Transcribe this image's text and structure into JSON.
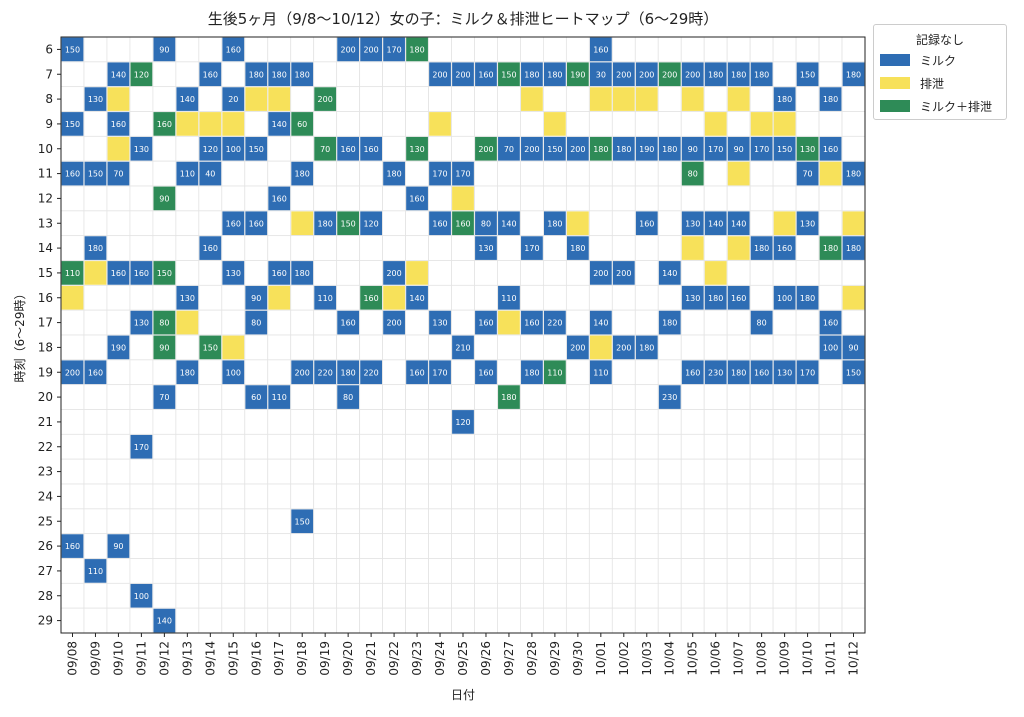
{
  "chart_data": {
    "type": "heatmap",
    "title": "生後5ヶ月（9/8〜10/12）女の子：ミルク＆排泄ヒートマップ（6〜29時）",
    "xlabel": "日付",
    "ylabel": "時刻（6〜29時）",
    "x": [
      "09/08",
      "09/09",
      "09/10",
      "09/11",
      "09/12",
      "09/13",
      "09/14",
      "09/15",
      "09/16",
      "09/17",
      "09/18",
      "09/19",
      "09/20",
      "09/21",
      "09/22",
      "09/23",
      "09/24",
      "09/25",
      "09/26",
      "09/27",
      "09/28",
      "09/29",
      "09/30",
      "10/01",
      "10/02",
      "10/03",
      "10/04",
      "10/05",
      "10/06",
      "10/07",
      "10/08",
      "10/09",
      "10/10",
      "10/11",
      "10/12"
    ],
    "y": [
      "6",
      "7",
      "8",
      "9",
      "10",
      "11",
      "12",
      "13",
      "14",
      "15",
      "16",
      "17",
      "18",
      "19",
      "20",
      "21",
      "22",
      "23",
      "24",
      "25",
      "26",
      "27",
      "28",
      "29"
    ],
    "colors": {
      "none": "#ffffff",
      "milk": "#2e6db4",
      "excretion": "#f7e15a",
      "both": "#2e8b57"
    },
    "legend": {
      "title": "記録なし",
      "position": "outside-right",
      "items": [
        {
          "label": "ミルク",
          "color": "#2e6db4"
        },
        {
          "label": "排泄",
          "color": "#f7e15a"
        },
        {
          "label": "ミルク＋排泄",
          "color": "#2e8b57"
        }
      ]
    },
    "grid": true,
    "cells": [
      [
        "09/08",
        "6",
        "milk",
        150
      ],
      [
        "09/12",
        "6",
        "milk",
        90
      ],
      [
        "09/15",
        "6",
        "milk",
        160
      ],
      [
        "09/20",
        "6",
        "milk",
        200
      ],
      [
        "09/21",
        "6",
        "milk",
        200
      ],
      [
        "09/22",
        "6",
        "milk",
        170
      ],
      [
        "09/23",
        "6",
        "both",
        180
      ],
      [
        "10/01",
        "6",
        "milk",
        160
      ],
      [
        "09/10",
        "7",
        "milk",
        140
      ],
      [
        "09/11",
        "7",
        "both",
        120
      ],
      [
        "09/14",
        "7",
        "milk",
        160
      ],
      [
        "09/16",
        "7",
        "milk",
        180
      ],
      [
        "09/17",
        "7",
        "milk",
        180
      ],
      [
        "09/18",
        "7",
        "milk",
        180
      ],
      [
        "09/24",
        "7",
        "milk",
        200
      ],
      [
        "09/25",
        "7",
        "milk",
        200
      ],
      [
        "09/26",
        "7",
        "milk",
        160
      ],
      [
        "09/27",
        "7",
        "both",
        150
      ],
      [
        "09/28",
        "7",
        "milk",
        180
      ],
      [
        "09/29",
        "7",
        "milk",
        180
      ],
      [
        "09/30",
        "7",
        "both",
        190
      ],
      [
        "10/01",
        "7",
        "milk",
        30
      ],
      [
        "10/02",
        "7",
        "milk",
        200
      ],
      [
        "10/03",
        "7",
        "milk",
        200
      ],
      [
        "10/04",
        "7",
        "both",
        200
      ],
      [
        "10/05",
        "7",
        "milk",
        200
      ],
      [
        "10/06",
        "7",
        "milk",
        180
      ],
      [
        "10/07",
        "7",
        "milk",
        180
      ],
      [
        "10/08",
        "7",
        "milk",
        180
      ],
      [
        "10/10",
        "7",
        "milk",
        150
      ],
      [
        "10/12",
        "7",
        "milk",
        180
      ],
      [
        "09/09",
        "8",
        "milk",
        130
      ],
      [
        "09/10",
        "8",
        "excretion",
        null
      ],
      [
        "09/13",
        "8",
        "milk",
        140
      ],
      [
        "09/15",
        "8",
        "milk",
        20
      ],
      [
        "09/16",
        "8",
        "excretion",
        null
      ],
      [
        "09/17",
        "8",
        "excretion",
        null
      ],
      [
        "09/19",
        "8",
        "both",
        200
      ],
      [
        "09/28",
        "8",
        "excretion",
        null
      ],
      [
        "10/01",
        "8",
        "excretion",
        null
      ],
      [
        "10/02",
        "8",
        "excretion",
        null
      ],
      [
        "10/03",
        "8",
        "excretion",
        null
      ],
      [
        "10/05",
        "8",
        "excretion",
        null
      ],
      [
        "10/07",
        "8",
        "excretion",
        null
      ],
      [
        "10/09",
        "8",
        "milk",
        180
      ],
      [
        "10/11",
        "8",
        "milk",
        180
      ],
      [
        "09/08",
        "9",
        "milk",
        150
      ],
      [
        "09/10",
        "9",
        "milk",
        160
      ],
      [
        "09/12",
        "9",
        "both",
        160
      ],
      [
        "09/13",
        "9",
        "excretion",
        null
      ],
      [
        "09/14",
        "9",
        "excretion",
        null
      ],
      [
        "09/15",
        "9",
        "excretion",
        null
      ],
      [
        "09/17",
        "9",
        "milk",
        140
      ],
      [
        "09/18",
        "9",
        "both",
        60
      ],
      [
        "09/24",
        "9",
        "excretion",
        null
      ],
      [
        "09/29",
        "9",
        "excretion",
        null
      ],
      [
        "10/06",
        "9",
        "excretion",
        null
      ],
      [
        "10/08",
        "9",
        "excretion",
        null
      ],
      [
        "10/09",
        "9",
        "excretion",
        null
      ],
      [
        "09/10",
        "10",
        "excretion",
        null
      ],
      [
        "09/11",
        "10",
        "milk",
        130
      ],
      [
        "09/14",
        "10",
        "milk",
        120
      ],
      [
        "09/15",
        "10",
        "milk",
        100
      ],
      [
        "09/16",
        "10",
        "milk",
        150
      ],
      [
        "09/19",
        "10",
        "both",
        70
      ],
      [
        "09/20",
        "10",
        "milk",
        160
      ],
      [
        "09/21",
        "10",
        "milk",
        160
      ],
      [
        "09/23",
        "10",
        "both",
        130
      ],
      [
        "09/26",
        "10",
        "both",
        200
      ],
      [
        "09/27",
        "10",
        "milk",
        70
      ],
      [
        "09/28",
        "10",
        "milk",
        200
      ],
      [
        "09/29",
        "10",
        "milk",
        150
      ],
      [
        "09/30",
        "10",
        "milk",
        200
      ],
      [
        "10/01",
        "10",
        "both",
        180
      ],
      [
        "10/02",
        "10",
        "milk",
        180
      ],
      [
        "10/03",
        "10",
        "milk",
        190
      ],
      [
        "10/04",
        "10",
        "milk",
        180
      ],
      [
        "10/05",
        "10",
        "milk",
        90
      ],
      [
        "10/06",
        "10",
        "milk",
        170
      ],
      [
        "10/07",
        "10",
        "milk",
        90
      ],
      [
        "10/08",
        "10",
        "milk",
        170
      ],
      [
        "10/09",
        "10",
        "milk",
        150
      ],
      [
        "10/10",
        "10",
        "both",
        130
      ],
      [
        "10/11",
        "10",
        "milk",
        160
      ],
      [
        "09/08",
        "11",
        "milk",
        160
      ],
      [
        "09/09",
        "11",
        "milk",
        150
      ],
      [
        "09/10",
        "11",
        "milk",
        70
      ],
      [
        "09/13",
        "11",
        "milk",
        110
      ],
      [
        "09/14",
        "11",
        "milk",
        40
      ],
      [
        "09/18",
        "11",
        "milk",
        180
      ],
      [
        "09/22",
        "11",
        "milk",
        180
      ],
      [
        "09/24",
        "11",
        "milk",
        170
      ],
      [
        "09/25",
        "11",
        "milk",
        170
      ],
      [
        "10/05",
        "11",
        "both",
        80
      ],
      [
        "10/07",
        "11",
        "excretion",
        null
      ],
      [
        "10/10",
        "11",
        "milk",
        70
      ],
      [
        "10/11",
        "11",
        "excretion",
        null
      ],
      [
        "10/12",
        "11",
        "milk",
        180
      ],
      [
        "09/12",
        "12",
        "both",
        90
      ],
      [
        "09/17",
        "12",
        "milk",
        160
      ],
      [
        "09/23",
        "12",
        "milk",
        160
      ],
      [
        "09/25",
        "12",
        "excretion",
        null
      ],
      [
        "09/15",
        "13",
        "milk",
        160
      ],
      [
        "09/16",
        "13",
        "milk",
        160
      ],
      [
        "09/18",
        "13",
        "excretion",
        null
      ],
      [
        "09/19",
        "13",
        "milk",
        180
      ],
      [
        "09/20",
        "13",
        "both",
        150
      ],
      [
        "09/21",
        "13",
        "milk",
        120
      ],
      [
        "09/24",
        "13",
        "milk",
        160
      ],
      [
        "09/25",
        "13",
        "both",
        160
      ],
      [
        "09/26",
        "13",
        "milk",
        80
      ],
      [
        "09/27",
        "13",
        "milk",
        140
      ],
      [
        "09/29",
        "13",
        "milk",
        180
      ],
      [
        "09/30",
        "13",
        "excretion",
        null
      ],
      [
        "10/03",
        "13",
        "milk",
        160
      ],
      [
        "10/05",
        "13",
        "milk",
        130
      ],
      [
        "10/06",
        "13",
        "milk",
        140
      ],
      [
        "10/07",
        "13",
        "milk",
        140
      ],
      [
        "10/09",
        "13",
        "excretion",
        null
      ],
      [
        "10/10",
        "13",
        "milk",
        130
      ],
      [
        "10/12",
        "13",
        "excretion",
        null
      ],
      [
        "09/09",
        "14",
        "milk",
        180
      ],
      [
        "09/14",
        "14",
        "milk",
        160
      ],
      [
        "09/26",
        "14",
        "milk",
        130
      ],
      [
        "09/28",
        "14",
        "milk",
        170
      ],
      [
        "09/30",
        "14",
        "milk",
        180
      ],
      [
        "10/05",
        "14",
        "excretion",
        null
      ],
      [
        "10/07",
        "14",
        "excretion",
        null
      ],
      [
        "10/08",
        "14",
        "milk",
        180
      ],
      [
        "10/09",
        "14",
        "milk",
        160
      ],
      [
        "10/11",
        "14",
        "both",
        180
      ],
      [
        "10/12",
        "14",
        "milk",
        180
      ],
      [
        "09/08",
        "15",
        "both",
        110
      ],
      [
        "09/09",
        "15",
        "excretion",
        null
      ],
      [
        "09/10",
        "15",
        "milk",
        160
      ],
      [
        "09/11",
        "15",
        "milk",
        160
      ],
      [
        "09/12",
        "15",
        "both",
        150
      ],
      [
        "09/15",
        "15",
        "milk",
        130
      ],
      [
        "09/17",
        "15",
        "milk",
        160
      ],
      [
        "09/18",
        "15",
        "milk",
        180
      ],
      [
        "09/22",
        "15",
        "milk",
        200
      ],
      [
        "09/23",
        "15",
        "excretion",
        null
      ],
      [
        "10/01",
        "15",
        "milk",
        200
      ],
      [
        "10/02",
        "15",
        "milk",
        200
      ],
      [
        "10/04",
        "15",
        "milk",
        140
      ],
      [
        "10/06",
        "15",
        "excretion",
        null
      ],
      [
        "09/08",
        "16",
        "excretion",
        null
      ],
      [
        "09/13",
        "16",
        "milk",
        130
      ],
      [
        "09/16",
        "16",
        "milk",
        90
      ],
      [
        "09/17",
        "16",
        "excretion",
        null
      ],
      [
        "09/19",
        "16",
        "milk",
        110
      ],
      [
        "09/21",
        "16",
        "both",
        160
      ],
      [
        "09/22",
        "16",
        "excretion",
        null
      ],
      [
        "09/23",
        "16",
        "milk",
        140
      ],
      [
        "09/27",
        "16",
        "milk",
        110
      ],
      [
        "10/05",
        "16",
        "milk",
        130
      ],
      [
        "10/06",
        "16",
        "milk",
        180
      ],
      [
        "10/07",
        "16",
        "milk",
        160
      ],
      [
        "10/09",
        "16",
        "milk",
        100
      ],
      [
        "10/10",
        "16",
        "milk",
        180
      ],
      [
        "10/12",
        "16",
        "excretion",
        null
      ],
      [
        "09/11",
        "17",
        "milk",
        130
      ],
      [
        "09/12",
        "17",
        "both",
        80
      ],
      [
        "09/13",
        "17",
        "excretion",
        null
      ],
      [
        "09/16",
        "17",
        "milk",
        80
      ],
      [
        "09/20",
        "17",
        "milk",
        160
      ],
      [
        "09/22",
        "17",
        "milk",
        200
      ],
      [
        "09/24",
        "17",
        "milk",
        130
      ],
      [
        "09/26",
        "17",
        "milk",
        160
      ],
      [
        "09/27",
        "17",
        "excretion",
        null
      ],
      [
        "09/28",
        "17",
        "milk",
        160
      ],
      [
        "09/29",
        "17",
        "milk",
        220
      ],
      [
        "10/01",
        "17",
        "milk",
        140
      ],
      [
        "10/04",
        "17",
        "milk",
        180
      ],
      [
        "10/08",
        "17",
        "milk",
        80
      ],
      [
        "10/11",
        "17",
        "milk",
        160
      ],
      [
        "09/10",
        "18",
        "milk",
        190
      ],
      [
        "09/12",
        "18",
        "both",
        90
      ],
      [
        "09/14",
        "18",
        "both",
        150
      ],
      [
        "09/15",
        "18",
        "excretion",
        null
      ],
      [
        "09/25",
        "18",
        "milk",
        210
      ],
      [
        "09/30",
        "18",
        "milk",
        200
      ],
      [
        "10/01",
        "18",
        "excretion",
        null
      ],
      [
        "10/02",
        "18",
        "milk",
        200
      ],
      [
        "10/03",
        "18",
        "milk",
        180
      ],
      [
        "10/11",
        "18",
        "milk",
        100
      ],
      [
        "10/12",
        "18",
        "milk",
        90
      ],
      [
        "09/08",
        "19",
        "milk",
        200
      ],
      [
        "09/09",
        "19",
        "milk",
        160
      ],
      [
        "09/13",
        "19",
        "milk",
        180
      ],
      [
        "09/15",
        "19",
        "milk",
        100
      ],
      [
        "09/18",
        "19",
        "milk",
        200
      ],
      [
        "09/19",
        "19",
        "milk",
        220
      ],
      [
        "09/20",
        "19",
        "milk",
        180
      ],
      [
        "09/21",
        "19",
        "milk",
        220
      ],
      [
        "09/23",
        "19",
        "milk",
        160
      ],
      [
        "09/24",
        "19",
        "milk",
        170
      ],
      [
        "09/26",
        "19",
        "milk",
        160
      ],
      [
        "09/28",
        "19",
        "milk",
        180
      ],
      [
        "09/29",
        "19",
        "both",
        110
      ],
      [
        "10/01",
        "19",
        "milk",
        110
      ],
      [
        "10/05",
        "19",
        "milk",
        160
      ],
      [
        "10/06",
        "19",
        "milk",
        230
      ],
      [
        "10/07",
        "19",
        "milk",
        180
      ],
      [
        "10/08",
        "19",
        "milk",
        160
      ],
      [
        "10/09",
        "19",
        "milk",
        130
      ],
      [
        "10/10",
        "19",
        "milk",
        170
      ],
      [
        "10/12",
        "19",
        "milk",
        150
      ],
      [
        "09/12",
        "20",
        "milk",
        70
      ],
      [
        "09/16",
        "20",
        "milk",
        60
      ],
      [
        "09/17",
        "20",
        "milk",
        110
      ],
      [
        "09/20",
        "20",
        "milk",
        80
      ],
      [
        "09/27",
        "20",
        "both",
        180
      ],
      [
        "10/04",
        "20",
        "milk",
        230
      ],
      [
        "09/25",
        "21",
        "milk",
        120
      ],
      [
        "09/11",
        "22",
        "milk",
        170
      ],
      [
        "09/18",
        "25",
        "milk",
        150
      ],
      [
        "09/08",
        "26",
        "milk",
        160
      ],
      [
        "09/10",
        "26",
        "milk",
        90
      ],
      [
        "09/09",
        "27",
        "milk",
        110
      ],
      [
        "09/11",
        "28",
        "milk",
        100
      ],
      [
        "09/12",
        "29",
        "milk",
        140
      ]
    ]
  }
}
